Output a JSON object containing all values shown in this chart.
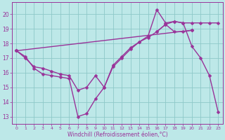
{
  "xlabel": "Windchill (Refroidissement éolien,°C)",
  "background_color": "#bde8e8",
  "grid_color": "#8ec8c8",
  "line_color": "#993399",
  "markersize": 2.5,
  "linewidth": 1.0,
  "xlim": [
    -0.5,
    23.5
  ],
  "ylim": [
    12.5,
    20.8
  ],
  "xticks": [
    0,
    1,
    2,
    3,
    4,
    5,
    6,
    7,
    8,
    9,
    10,
    11,
    12,
    13,
    14,
    15,
    16,
    17,
    18,
    19,
    20,
    21,
    22,
    23
  ],
  "yticks": [
    13,
    14,
    15,
    16,
    17,
    18,
    19,
    20
  ],
  "series1_x": [
    0,
    1,
    2,
    3,
    4,
    5,
    6,
    7,
    8,
    9,
    10,
    11,
    12,
    13,
    14,
    15,
    16,
    17,
    18,
    19,
    20,
    21,
    22,
    23
  ],
  "series1_y": [
    17.5,
    17.1,
    16.3,
    15.9,
    15.8,
    15.7,
    15.6,
    13.0,
    13.2,
    14.2,
    15.0,
    16.4,
    17.0,
    17.6,
    18.1,
    18.5,
    20.3,
    19.4,
    19.5,
    19.4,
    17.8,
    17.0,
    15.8,
    13.3
  ],
  "series2_x": [
    0,
    1,
    2,
    3,
    4,
    5,
    6,
    7,
    8,
    9,
    10,
    11,
    12,
    13,
    14,
    15,
    16,
    17,
    18,
    19,
    20
  ],
  "series2_y": [
    17.5,
    17.0,
    16.4,
    16.3,
    16.1,
    15.9,
    15.8,
    14.8,
    15.0,
    15.8,
    15.0,
    16.5,
    17.1,
    17.7,
    18.1,
    18.4,
    18.8,
    19.3,
    18.8,
    18.8,
    18.9
  ],
  "series3_x": [
    0,
    20
  ],
  "series3_y": [
    17.5,
    18.9
  ],
  "series4_x": [
    16,
    17,
    18,
    19,
    20,
    21,
    22,
    23
  ],
  "series4_y": [
    18.8,
    19.3,
    19.5,
    19.4,
    19.4,
    19.4,
    19.4,
    19.4
  ]
}
